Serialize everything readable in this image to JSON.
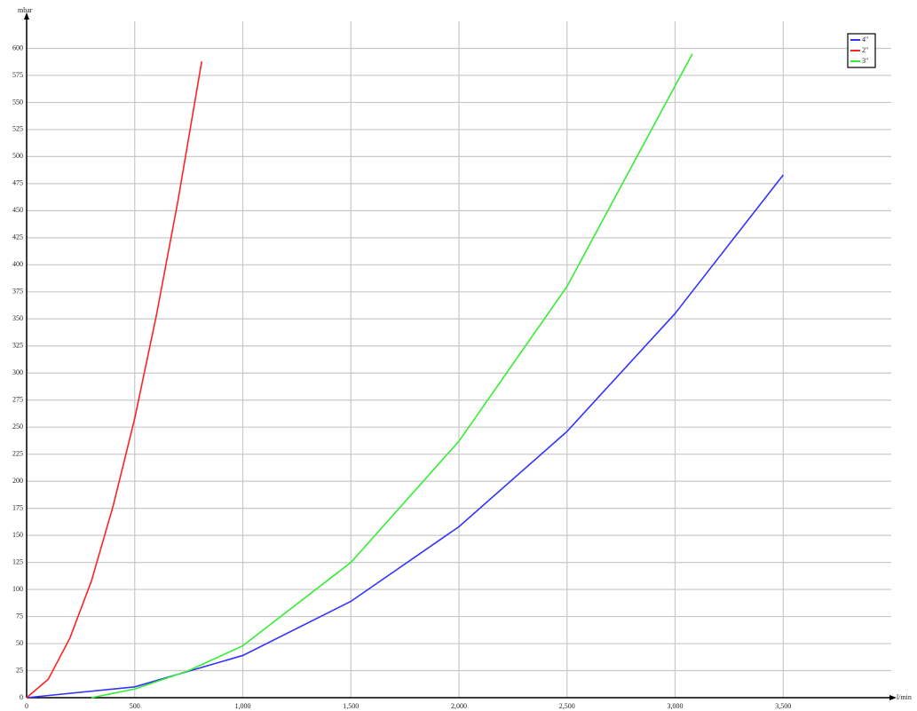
{
  "chart_data": {
    "type": "line",
    "x_label": "l/min",
    "y_label": "mbar",
    "xlim": [
      0,
      4000
    ],
    "ylim": [
      0,
      625
    ],
    "xticks": [
      0,
      500,
      {
        "value": 1000,
        "label": "1,000"
      },
      {
        "value": 1500,
        "label": "1,500"
      },
      {
        "value": 2000,
        "label": "2,000"
      },
      {
        "value": 2500,
        "label": "2,500"
      },
      {
        "value": 3000,
        "label": "3,000"
      },
      {
        "value": 3500,
        "label": "3,500"
      }
    ],
    "yticks": [
      0,
      25,
      50,
      75,
      100,
      125,
      150,
      175,
      200,
      225,
      250,
      275,
      300,
      325,
      350,
      375,
      400,
      425,
      450,
      475,
      500,
      525,
      550,
      575,
      600
    ],
    "grid": true,
    "legend": "top-right",
    "series": [
      {
        "name": "4\"",
        "color": "#3333ff",
        "x": [
          0,
          500,
          1000,
          1500,
          2000,
          2500,
          3000,
          3500
        ],
        "values": [
          0,
          10,
          39,
          89,
          158,
          246,
          355,
          483
        ]
      },
      {
        "name": "2\"",
        "color": "#ff2222",
        "x": [
          0,
          100,
          200,
          300,
          400,
          500,
          600,
          700,
          810
        ],
        "values": [
          0,
          17,
          55,
          108,
          177,
          258,
          353,
          459,
          588
        ]
      },
      {
        "name": "3\"",
        "color": "#33ee33",
        "x": [
          300,
          500,
          750,
          1000,
          1500,
          2000,
          2500,
          3080
        ],
        "values": [
          0,
          8,
          25,
          48,
          125,
          237,
          380,
          595
        ]
      }
    ]
  }
}
